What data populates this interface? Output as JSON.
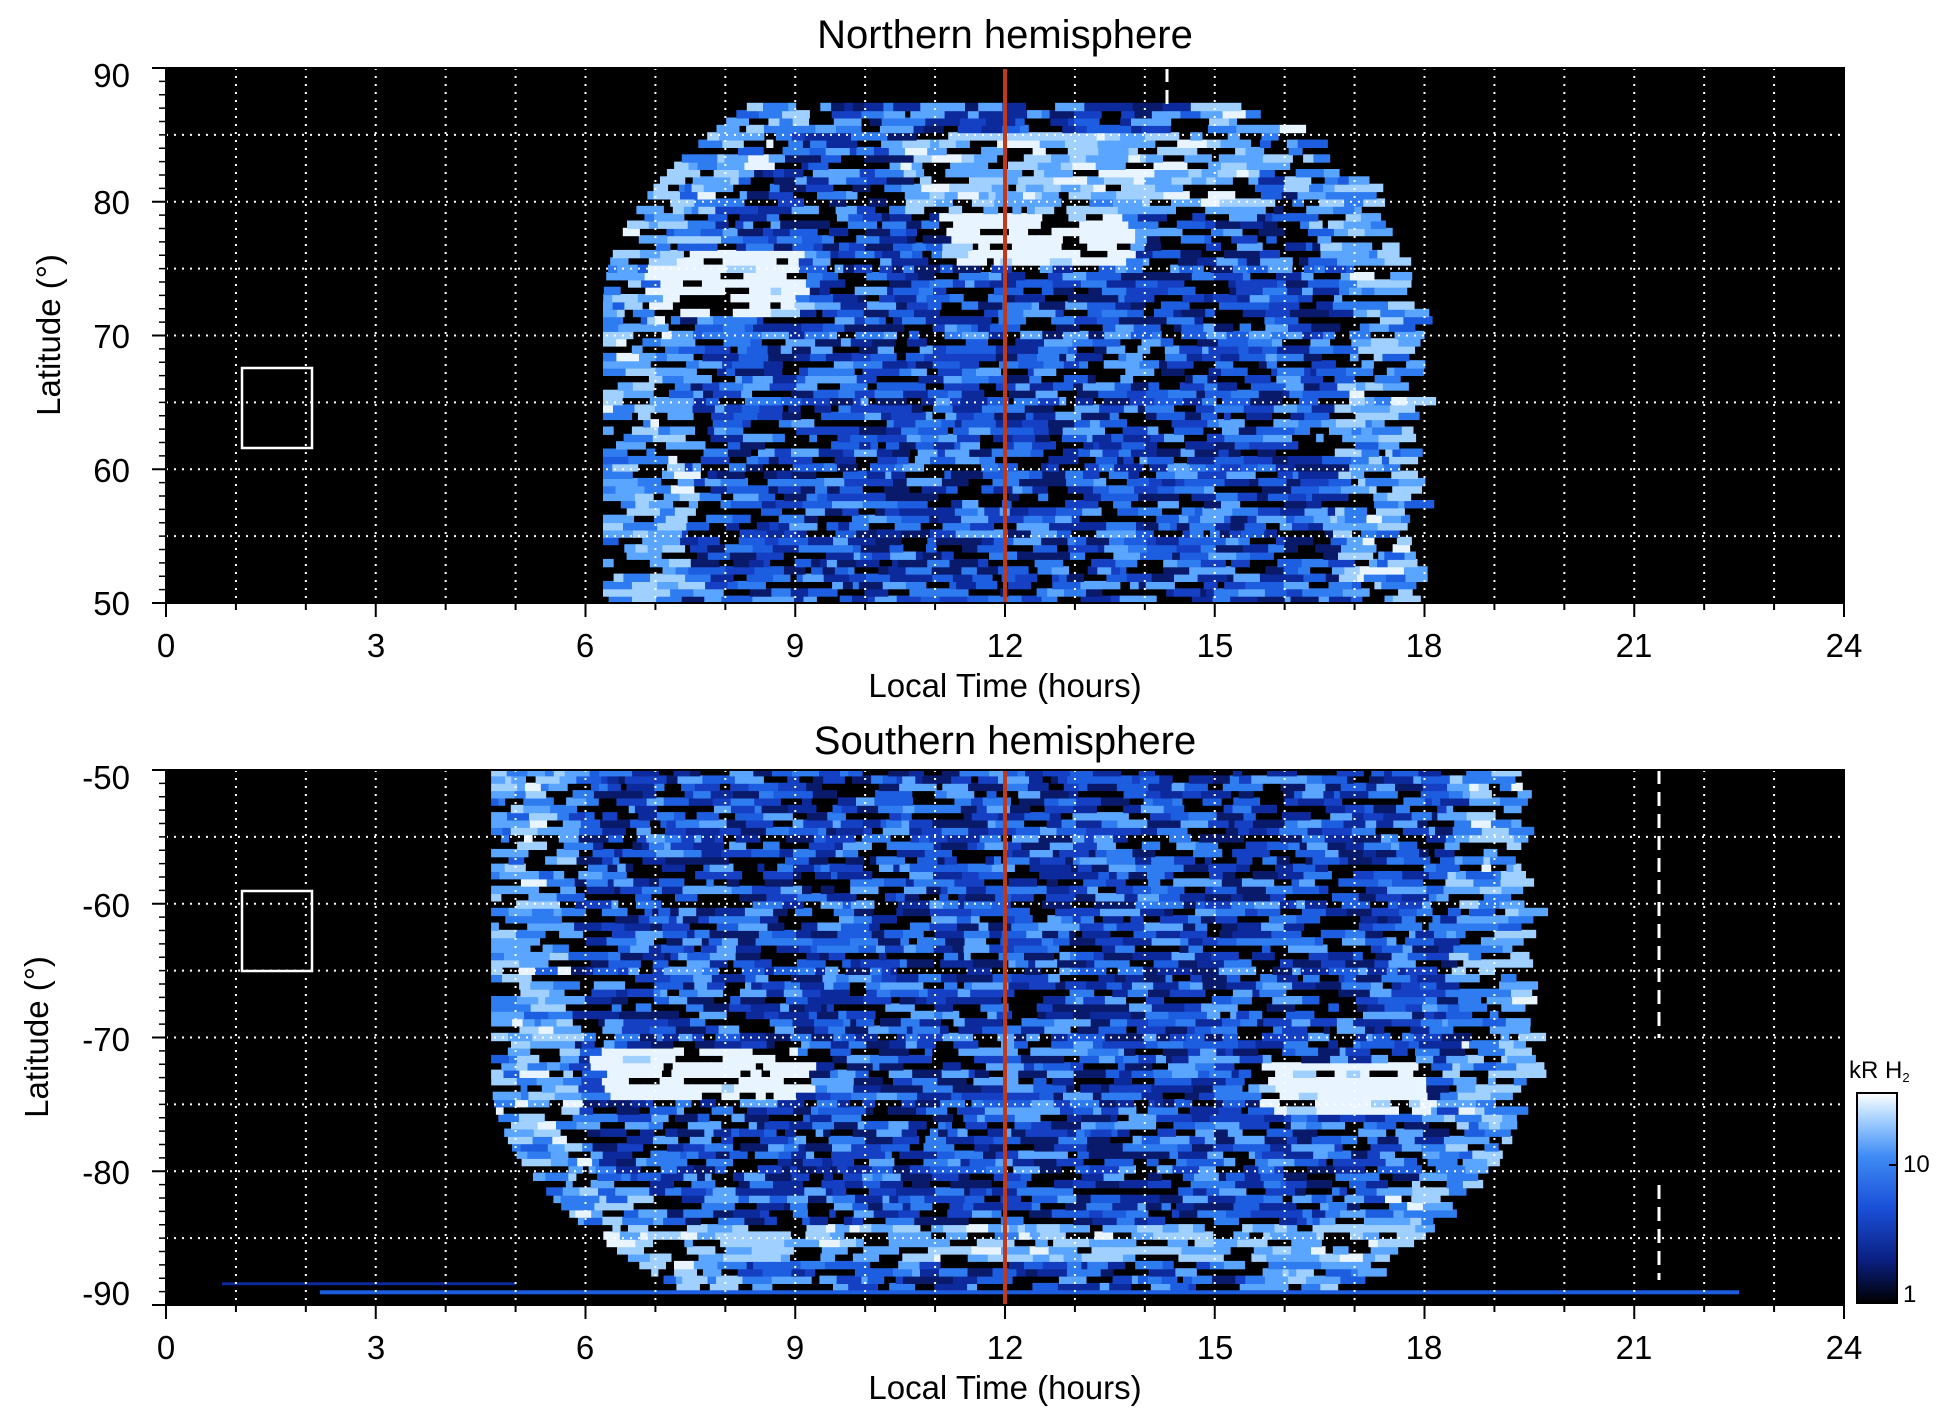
{
  "chart_data": [
    {
      "type": "heatmap",
      "title": "Northern hemisphere",
      "xlabel": "Local Time (hours)",
      "ylabel": "Latitude (°)",
      "xlim": [
        0,
        24
      ],
      "ylim": [
        50,
        90
      ],
      "x_ticks": [
        "0",
        "3",
        "6",
        "9",
        "12",
        "15",
        "18",
        "21",
        "24"
      ],
      "y_ticks": [
        "50",
        "60",
        "70",
        "80",
        "90"
      ],
      "grid": true,
      "background": "#000000",
      "coverage": {
        "lt_start": 6.4,
        "lt_end": 17.9,
        "lat_edge": 87
      },
      "bright_regions": [
        {
          "lt": [
            6.8,
            9.0
          ],
          "lat": [
            71,
            76
          ],
          "level": "high"
        },
        {
          "lt": [
            11.0,
            13.6
          ],
          "lat": [
            75,
            79
          ],
          "level": "high"
        },
        {
          "lt": [
            10.5,
            15.5
          ],
          "lat": [
            79,
            85
          ],
          "level": "medium"
        }
      ],
      "noon_line_lt": 12,
      "noon_line_color": "#c0391b",
      "dashed_line_lt": 14.4,
      "dashed_line_lat": [
        78,
        88
      ],
      "box": {
        "lt": [
          1.1,
          2.1
        ],
        "lat": [
          61.5,
          67.5
        ]
      }
    },
    {
      "type": "heatmap",
      "title": "Southern hemisphere",
      "xlabel": "Local Time (hours)",
      "ylabel": "Latitude (°)",
      "xlim": [
        0,
        24
      ],
      "ylim": [
        -90,
        -50
      ],
      "x_ticks": [
        "0",
        "3",
        "6",
        "9",
        "12",
        "15",
        "18",
        "21",
        "24"
      ],
      "y_ticks": [
        "-50",
        "-60",
        "-70",
        "-80",
        "-90"
      ],
      "grid": true,
      "background": "#000000",
      "coverage": {
        "lt_start": 4.8,
        "lt_end": 19.5,
        "lat_edge": -89
      },
      "bright_regions": [
        {
          "lt": [
            6.0,
            9.0
          ],
          "lat": [
            -75,
            -71
          ],
          "level": "high"
        },
        {
          "lt": [
            15.5,
            18.0
          ],
          "lat": [
            -76,
            -72
          ],
          "level": "high"
        },
        {
          "lt": [
            5.0,
            20.0
          ],
          "lat": [
            -87,
            -84
          ],
          "level": "medium"
        }
      ],
      "noon_line_lt": 12,
      "noon_line_color": "#c0391b",
      "dashed_line_lt": 21.4,
      "dashed_line_lat": [
        -50,
        -70
      ],
      "dashed_line_lat2": [
        -82,
        -88
      ],
      "box": {
        "lt": [
          1.1,
          2.1
        ],
        "lat": [
          -65,
          -59
        ]
      }
    }
  ],
  "colorbar": {
    "label": "kR H",
    "label_subscript": "2",
    "ticks": [
      "10",
      "1"
    ],
    "colors": [
      "#000000",
      "#0a1f80",
      "#1a4fd8",
      "#3f8cf5",
      "#a9d3ff",
      "#ffffff"
    ]
  }
}
